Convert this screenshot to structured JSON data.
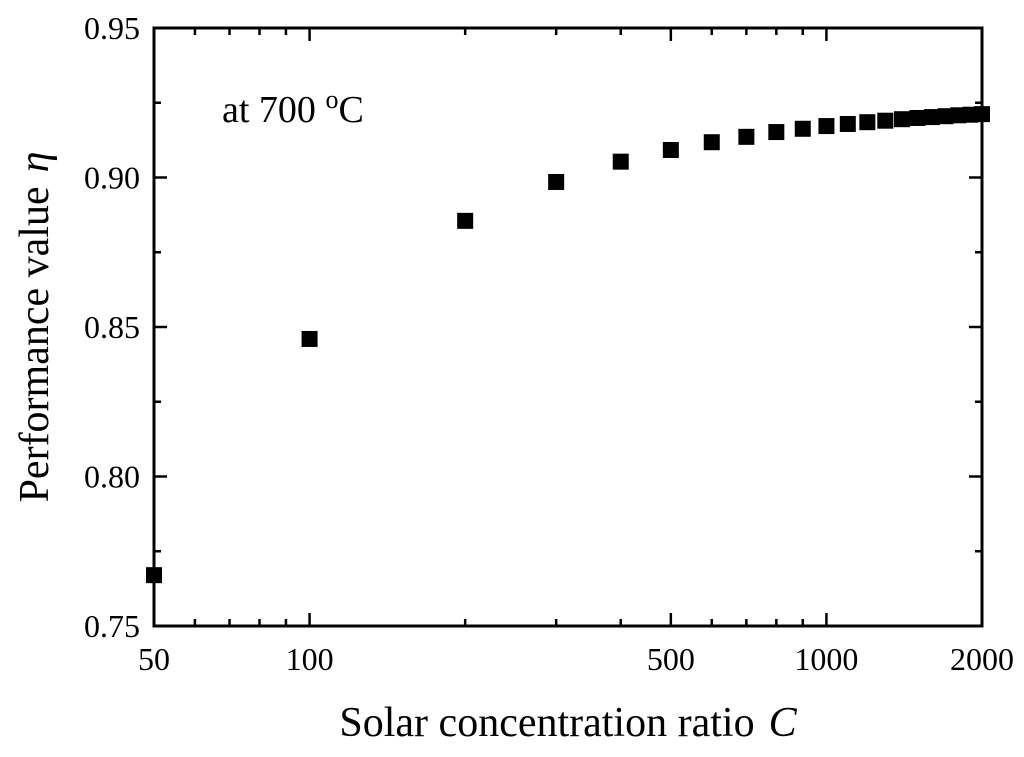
{
  "chart_data": {
    "type": "scatter",
    "xlabel": "Solar concentration ratio",
    "xlabel_symbol": "C",
    "ylabel": "Performance value",
    "ylabel_symbol": "η",
    "annotation": {
      "text": "at 700 ",
      "superscript": "o",
      "suffix": "C"
    },
    "x_scale": "log",
    "xlim": [
      50,
      2000
    ],
    "ylim": [
      0.75,
      0.95
    ],
    "x_major_ticks": [
      50,
      100,
      500,
      1000,
      2000
    ],
    "x_tick_labels": [
      "50",
      "100",
      "500",
      "1000",
      "2000"
    ],
    "x_minor_ticks": [
      60,
      70,
      80,
      90,
      200,
      300,
      400,
      600,
      700,
      800,
      900
    ],
    "y_major_ticks": [
      0.75,
      0.8,
      0.85,
      0.9,
      0.95
    ],
    "y_tick_labels": [
      "0.75",
      "0.80",
      "0.85",
      "0.90",
      "0.95"
    ],
    "y_minor_ticks": [
      0.775,
      0.825,
      0.875,
      0.925
    ],
    "grid": false,
    "marker": "square",
    "marker_color": "#000000",
    "points": [
      {
        "x": 50,
        "y": 0.767
      },
      {
        "x": 100,
        "y": 0.846
      },
      {
        "x": 200,
        "y": 0.8855
      },
      {
        "x": 300,
        "y": 0.8985
      },
      {
        "x": 400,
        "y": 0.9053
      },
      {
        "x": 500,
        "y": 0.9092
      },
      {
        "x": 600,
        "y": 0.9118
      },
      {
        "x": 700,
        "y": 0.9136
      },
      {
        "x": 800,
        "y": 0.9152
      },
      {
        "x": 900,
        "y": 0.9163
      },
      {
        "x": 1000,
        "y": 0.9172
      },
      {
        "x": 1100,
        "y": 0.9179
      },
      {
        "x": 1200,
        "y": 0.9185
      },
      {
        "x": 1300,
        "y": 0.919
      },
      {
        "x": 1400,
        "y": 0.9195
      },
      {
        "x": 1500,
        "y": 0.9199
      },
      {
        "x": 1600,
        "y": 0.9202
      },
      {
        "x": 1700,
        "y": 0.9205
      },
      {
        "x": 1800,
        "y": 0.9208
      },
      {
        "x": 1900,
        "y": 0.921
      },
      {
        "x": 2000,
        "y": 0.9212
      }
    ]
  }
}
